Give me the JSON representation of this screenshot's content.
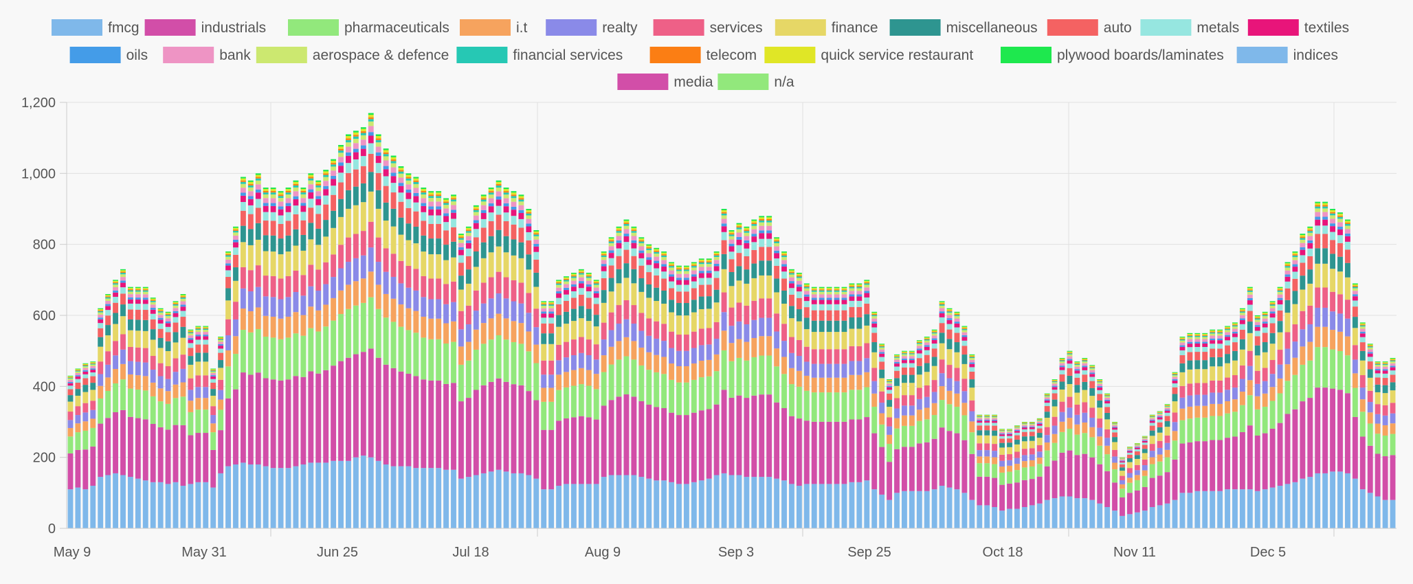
{
  "chart_data": {
    "type": "bar",
    "stacked": true,
    "title": "",
    "xlabel": "",
    "ylabel": "",
    "ylim": [
      0,
      1200
    ],
    "y_ticks": [
      0,
      200,
      400,
      600,
      800,
      1000,
      1200
    ],
    "y_tick_labels": [
      "0",
      "200",
      "400",
      "600",
      "800",
      "1,000",
      "1,200"
    ],
    "grid": true,
    "legend_position": "top",
    "x_tick_labels": [
      "May 9",
      "May 31",
      "Jun 25",
      "Jul 18",
      "Aug 9",
      "Sep 3",
      "Sep 25",
      "Oct 18",
      "Nov 11",
      "Dec 5"
    ],
    "series": [
      {
        "name": "fmcg",
        "color": "#7fb8ea"
      },
      {
        "name": "industrials",
        "color": "#d24ea8"
      },
      {
        "name": "pharmaceuticals",
        "color": "#92e87c"
      },
      {
        "name": "i.t",
        "color": "#f6a35e"
      },
      {
        "name": "realty",
        "color": "#8a8ae8"
      },
      {
        "name": "services",
        "color": "#ee6087"
      },
      {
        "name": "finance",
        "color": "#e6d766"
      },
      {
        "name": "miscellaneous",
        "color": "#2e9590"
      },
      {
        "name": "auto",
        "color": "#f46262"
      },
      {
        "name": "metals",
        "color": "#96e6e0"
      },
      {
        "name": "textiles",
        "color": "#e8157a"
      },
      {
        "name": "oils",
        "color": "#449ce8"
      },
      {
        "name": "bank",
        "color": "#ee94c4"
      },
      {
        "name": "aerospace & defence",
        "color": "#cce870"
      },
      {
        "name": "financial services",
        "color": "#26c8b4"
      },
      {
        "name": "telecom",
        "color": "#fb7e14"
      },
      {
        "name": "quick service restaurant",
        "color": "#e0e626"
      },
      {
        "name": "plywood boards/laminates",
        "color": "#1ee84e"
      },
      {
        "name": "indices",
        "color": "#7fb8ea"
      },
      {
        "name": "media",
        "color": "#d24ea8"
      },
      {
        "name": "n/a",
        "color": "#92e87c"
      }
    ],
    "bar_totals": [
      430,
      450,
      465,
      470,
      620,
      660,
      700,
      730,
      680,
      680,
      680,
      650,
      620,
      610,
      640,
      660,
      560,
      570,
      570,
      450,
      540,
      780,
      850,
      990,
      980,
      1000,
      960,
      960,
      950,
      960,
      980,
      960,
      1000,
      980,
      1010,
      1040,
      1080,
      1110,
      1120,
      1130,
      1170,
      1110,
      1070,
      1050,
      1020,
      1000,
      990,
      960,
      950,
      950,
      930,
      940,
      830,
      850,
      910,
      940,
      960,
      980,
      960,
      950,
      940,
      900,
      840,
      640,
      640,
      700,
      710,
      720,
      730,
      720,
      700,
      780,
      820,
      850,
      870,
      850,
      820,
      800,
      790,
      780,
      750,
      740,
      740,
      750,
      760,
      760,
      780,
      900,
      840,
      860,
      850,
      870,
      880,
      880,
      820,
      780,
      730,
      720,
      690,
      680,
      680,
      680,
      680,
      680,
      690,
      690,
      700,
      610,
      520,
      420,
      490,
      500,
      500,
      530,
      540,
      560,
      640,
      620,
      610,
      570,
      490,
      320,
      320,
      320,
      280,
      280,
      290,
      300,
      300,
      310,
      380,
      420,
      480,
      500,
      470,
      480,
      460,
      420,
      380,
      300,
      200,
      230,
      240,
      260,
      320,
      330,
      350,
      440,
      540,
      550,
      550,
      550,
      560,
      560,
      570,
      580,
      620,
      680,
      600,
      610,
      640,
      680,
      750,
      780,
      830,
      850,
      920,
      920,
      900,
      890,
      870,
      690,
      580,
      520,
      470,
      470,
      480
    ],
    "fmcg_values": [
      110,
      115,
      110,
      120,
      145,
      150,
      155,
      150,
      145,
      140,
      135,
      130,
      130,
      125,
      130,
      120,
      125,
      130,
      130,
      115,
      155,
      175,
      180,
      185,
      180,
      180,
      175,
      170,
      170,
      170,
      175,
      180,
      185,
      185,
      185,
      190,
      190,
      190,
      200,
      205,
      200,
      190,
      180,
      175,
      175,
      175,
      170,
      170,
      170,
      170,
      165,
      165,
      140,
      145,
      150,
      155,
      160,
      165,
      160,
      155,
      155,
      150,
      140,
      110,
      110,
      120,
      125,
      125,
      125,
      125,
      125,
      145,
      150,
      150,
      150,
      150,
      145,
      140,
      135,
      135,
      130,
      125,
      125,
      130,
      135,
      140,
      150,
      155,
      150,
      150,
      145,
      145,
      145,
      145,
      140,
      135,
      125,
      120,
      125,
      125,
      125,
      125,
      125,
      125,
      130,
      130,
      135,
      110,
      95,
      80,
      100,
      105,
      105,
      105,
      105,
      110,
      120,
      115,
      110,
      100,
      80,
      65,
      65,
      60,
      50,
      55,
      55,
      60,
      65,
      70,
      80,
      85,
      90,
      90,
      85,
      85,
      80,
      70,
      60,
      50,
      35,
      40,
      45,
      50,
      60,
      65,
      70,
      80,
      100,
      100,
      105,
      105,
      105,
      105,
      110,
      110,
      110,
      110,
      105,
      110,
      115,
      120,
      125,
      130,
      140,
      145,
      155,
      155,
      160,
      160,
      155,
      140,
      110,
      100,
      90,
      80,
      80
    ]
  }
}
